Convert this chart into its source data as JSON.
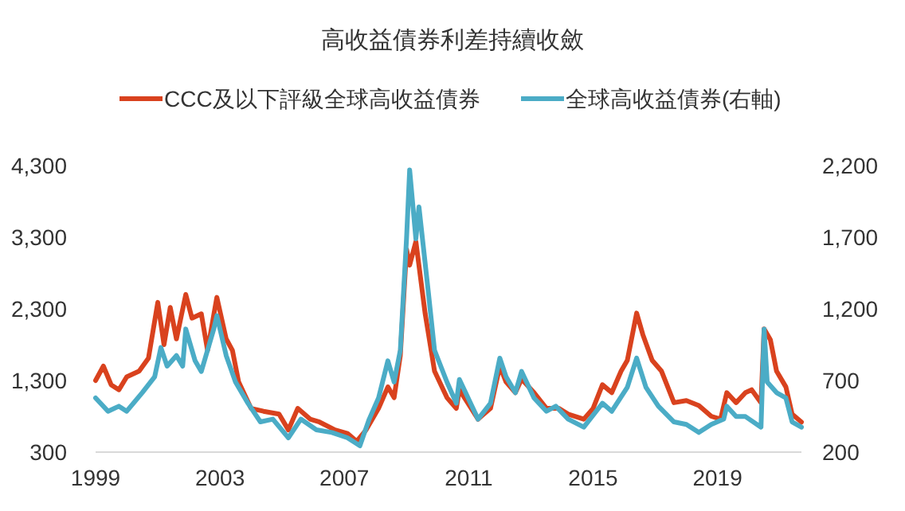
{
  "chart_data": {
    "type": "line",
    "title": "高收益債券利差持續收斂",
    "legend": "top",
    "xlim": [
      1999,
      2021.7
    ],
    "xticks": [
      1999,
      2003,
      2007,
      2011,
      2015,
      2019
    ],
    "ylim": [
      300,
      4300
    ],
    "yticks": [
      300,
      {
        "value": 1300,
        "label": "1,300"
      },
      {
        "value": 2300,
        "label": "2,300"
      },
      {
        "value": 3300,
        "label": "3,300"
      },
      {
        "value": 4300,
        "label": "4,300"
      }
    ],
    "y2lim": [
      200,
      2200
    ],
    "y2ticks": [
      200,
      700,
      {
        "value": 1200,
        "label": "1,200"
      },
      {
        "value": 1700,
        "label": "1,700"
      },
      {
        "value": 2200,
        "label": "2,200"
      }
    ],
    "series": [
      {
        "name": "CCC及以下評級全球高收益債券",
        "color": "#d9421e",
        "x": [
          1999.0,
          1999.25,
          1999.5,
          1999.75,
          2000.0,
          2000.4,
          2000.7,
          2001.0,
          2001.2,
          2001.4,
          2001.6,
          2001.9,
          2002.1,
          2002.4,
          2002.6,
          2002.9,
          2003.2,
          2003.4,
          2003.6,
          2004.0,
          2004.4,
          2004.9,
          2005.2,
          2005.5,
          2005.9,
          2006.2,
          2006.7,
          2007.1,
          2007.4,
          2007.7,
          2008.1,
          2008.4,
          2008.6,
          2008.8,
          2009.0,
          2009.1,
          2009.3,
          2009.6,
          2009.9,
          2010.3,
          2010.6,
          2010.7,
          2011.3,
          2011.7,
          2012.0,
          2012.2,
          2012.5,
          2012.7,
          2013.1,
          2013.5,
          2013.9,
          2014.2,
          2014.7,
          2015.0,
          2015.3,
          2015.6,
          2015.9,
          2016.1,
          2016.4,
          2016.6,
          2016.9,
          2017.2,
          2017.6,
          2018.0,
          2018.4,
          2018.8,
          2019.1,
          2019.3,
          2019.6,
          2019.9,
          2020.1,
          2020.4,
          2020.5,
          2020.7,
          2020.9,
          2021.2,
          2021.4,
          2021.7
        ],
        "values": [
          1300,
          1500,
          1240,
          1170,
          1350,
          1430,
          1610,
          2390,
          1800,
          2320,
          1880,
          2500,
          2170,
          2230,
          1720,
          2460,
          1880,
          1720,
          1280,
          910,
          870,
          830,
          610,
          910,
          760,
          720,
          610,
          560,
          450,
          610,
          910,
          1210,
          1060,
          1650,
          3130,
          2910,
          3240,
          2230,
          1430,
          1060,
          910,
          1170,
          760,
          910,
          1500,
          1280,
          1130,
          1320,
          1130,
          910,
          910,
          830,
          760,
          910,
          1240,
          1130,
          1430,
          1580,
          2240,
          1940,
          1580,
          1430,
          990,
          1020,
          950,
          800,
          760,
          1130,
          990,
          1130,
          1170,
          990,
          2020,
          1870,
          1430,
          1210,
          830,
          720
        ]
      },
      {
        "name": "全球高收益債券(右軸)",
        "color": "#4bacc6",
        "axis": "y2",
        "x": [
          1999.0,
          1999.4,
          1999.75,
          2000.0,
          2000.5,
          2000.9,
          2001.1,
          2001.3,
          2001.6,
          2001.8,
          2001.9,
          2002.2,
          2002.4,
          2002.8,
          2002.9,
          2003.2,
          2003.5,
          2003.9,
          2004.3,
          2004.7,
          2005.2,
          2005.6,
          2006.1,
          2006.6,
          2007.1,
          2007.5,
          2007.8,
          2008.1,
          2008.4,
          2008.6,
          2008.8,
          2009.0,
          2009.1,
          2009.3,
          2009.4,
          2009.7,
          2009.9,
          2010.3,
          2010.6,
          2010.7,
          2011.3,
          2011.7,
          2012.0,
          2012.2,
          2012.5,
          2012.7,
          2013.1,
          2013.5,
          2013.8,
          2014.2,
          2014.7,
          2015.3,
          2015.6,
          2016.1,
          2016.4,
          2016.7,
          2017.1,
          2017.6,
          2018.0,
          2018.4,
          2018.8,
          2019.2,
          2019.3,
          2019.6,
          2019.9,
          2020.4,
          2020.5,
          2020.6,
          2020.9,
          2021.2,
          2021.4,
          2021.7
        ],
        "values": [
          578,
          485,
          520,
          485,
          615,
          726,
          930,
          800,
          874,
          800,
          1059,
          837,
          763,
          1059,
          1152,
          874,
          689,
          541,
          411,
          430,
          300,
          430,
          356,
          337,
          300,
          244,
          430,
          578,
          837,
          689,
          911,
          1689,
          2170,
          1689,
          1911,
          1319,
          911,
          689,
          541,
          707,
          430,
          541,
          856,
          726,
          615,
          763,
          578,
          485,
          520,
          430,
          374,
          541,
          485,
          652,
          856,
          652,
          520,
          411,
          393,
          337,
          393,
          430,
          520,
          448,
          448,
          374,
          1059,
          689,
          615,
          578,
          411,
          374
        ]
      }
    ]
  }
}
